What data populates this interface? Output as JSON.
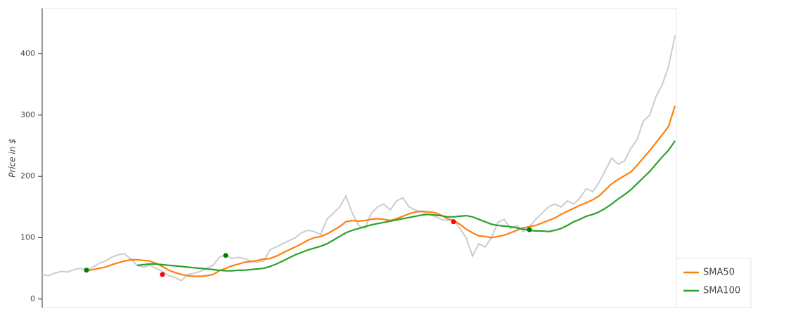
{
  "chart_data": {
    "type": "line",
    "y_label": "Price in $",
    "ylim": [
      -14,
      474
    ],
    "yticks": [
      0,
      100,
      200,
      300,
      400
    ],
    "legend": "bottom-right",
    "series": [
      {
        "color": "#cccccc",
        "values": [
          40,
          38,
          42,
          45,
          44,
          48,
          50,
          47,
          52,
          58,
          62,
          68,
          72,
          74,
          65,
          55,
          52,
          55,
          50,
          45,
          38,
          35,
          30,
          40,
          42,
          45,
          50,
          55,
          68,
          72,
          66,
          68,
          66,
          62,
          60,
          62,
          80,
          85,
          90,
          95,
          100,
          108,
          112,
          110,
          105,
          130,
          140,
          150,
          168,
          140,
          120,
          115,
          140,
          150,
          155,
          145,
          160,
          165,
          150,
          145,
          142,
          138,
          135,
          130,
          128,
          130,
          115,
          100,
          70,
          90,
          85,
          100,
          125,
          130,
          115,
          120,
          110,
          118,
          130,
          140,
          150,
          155,
          150,
          160,
          155,
          165,
          180,
          175,
          190,
          210,
          230,
          220,
          225,
          245,
          260,
          290,
          300,
          330,
          350,
          380,
          430
        ]
      },
      {
        "name": "SMA50",
        "color": "#ff7f0e",
        "values": [
          null,
          null,
          null,
          null,
          null,
          null,
          null,
          46,
          48,
          50,
          52,
          56,
          59,
          62,
          64,
          64,
          63,
          62,
          58,
          53,
          47,
          43,
          40,
          38,
          37,
          37,
          38,
          40,
          46,
          50,
          54,
          57,
          60,
          61,
          63,
          65,
          66,
          70,
          75,
          80,
          85,
          90,
          96,
          100,
          102,
          106,
          112,
          118,
          126,
          128,
          127,
          128,
          130,
          131,
          130,
          128,
          131,
          135,
          139,
          142,
          143,
          142,
          141,
          137,
          131,
          128,
          122,
          114,
          108,
          103,
          102,
          100,
          102,
          104,
          108,
          112,
          116,
          118,
          120,
          124,
          128,
          132,
          138,
          143,
          148,
          153,
          157,
          162,
          168,
          178,
          188,
          195,
          201,
          207,
          218,
          230,
          242,
          255,
          268,
          282,
          315
        ]
      },
      {
        "name": "SMA100",
        "color": "#2ca02c",
        "values": [
          null,
          null,
          null,
          null,
          null,
          null,
          null,
          null,
          null,
          null,
          null,
          null,
          null,
          null,
          null,
          55,
          56,
          57,
          57,
          56,
          55,
          54,
          53,
          52,
          51,
          50,
          49,
          48,
          47,
          46,
          46,
          47,
          47,
          48,
          49,
          50,
          53,
          57,
          62,
          67,
          72,
          76,
          80,
          83,
          86,
          90,
          96,
          102,
          108,
          112,
          115,
          118,
          121,
          123,
          125,
          127,
          129,
          131,
          133,
          135,
          137,
          138,
          137,
          136,
          134,
          134,
          135,
          136,
          134,
          130,
          126,
          122,
          120,
          119,
          118,
          116,
          114,
          112,
          111,
          111,
          110,
          112,
          115,
          120,
          126,
          130,
          135,
          138,
          142,
          148,
          155,
          163,
          170,
          178,
          188,
          198,
          208,
          220,
          232,
          243,
          258
        ]
      },
      {
        "type": "scatter",
        "color": "#008000",
        "values": [
          null,
          null,
          null,
          null,
          null,
          null,
          null,
          47,
          null,
          null,
          null,
          null,
          null,
          null,
          null,
          null,
          null,
          null,
          null,
          null,
          null,
          null,
          null,
          null,
          null,
          null,
          null,
          null,
          null,
          71,
          null,
          null,
          null,
          null,
          null,
          null,
          null,
          null,
          null,
          null,
          null,
          null,
          null,
          null,
          null,
          null,
          null,
          null,
          null,
          null,
          null,
          null,
          null,
          null,
          null,
          null,
          null,
          null,
          null,
          null,
          null,
          null,
          null,
          null,
          null,
          null,
          null,
          null,
          null,
          null,
          null,
          null,
          null,
          null,
          null,
          null,
          null,
          113,
          null,
          null,
          null,
          null,
          null,
          null,
          null,
          null,
          null,
          null,
          null,
          null,
          null,
          null,
          null,
          null,
          null,
          null,
          null,
          null,
          null,
          null,
          null
        ]
      },
      {
        "type": "scatter",
        "color": "#ff0000",
        "values": [
          null,
          null,
          null,
          null,
          null,
          null,
          null,
          null,
          null,
          null,
          null,
          null,
          null,
          null,
          null,
          null,
          null,
          null,
          null,
          40,
          null,
          null,
          null,
          null,
          null,
          null,
          null,
          null,
          null,
          null,
          null,
          null,
          null,
          null,
          null,
          null,
          null,
          null,
          null,
          null,
          null,
          null,
          null,
          null,
          null,
          null,
          null,
          null,
          null,
          null,
          null,
          null,
          null,
          null,
          null,
          null,
          null,
          null,
          null,
          null,
          null,
          null,
          null,
          null,
          null,
          126,
          null,
          null,
          null,
          null,
          null,
          null,
          null,
          null,
          null,
          null,
          null,
          null,
          null,
          null,
          null,
          null,
          null,
          null,
          null,
          null,
          null,
          null,
          null,
          null,
          null,
          null,
          null,
          null,
          null,
          null,
          null,
          null,
          null,
          null,
          null
        ]
      }
    ]
  }
}
